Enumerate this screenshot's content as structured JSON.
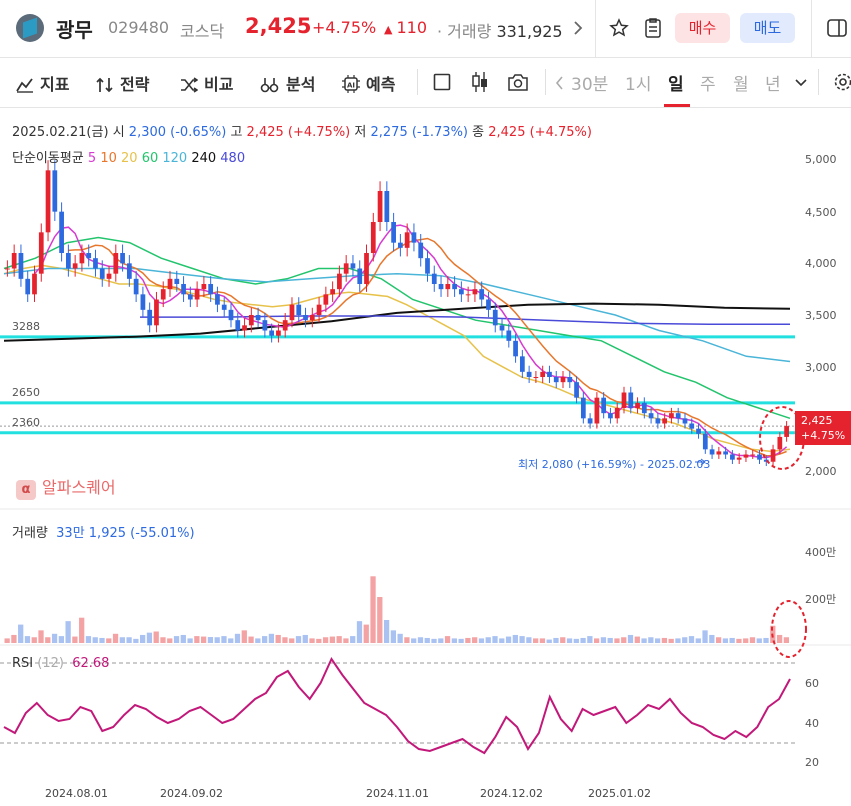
{
  "header": {
    "name": "광무",
    "code": "029480",
    "market": "코스닥",
    "price": "2,425",
    "change_pct": "+4.75%",
    "change_arrow": "▲",
    "change": "110",
    "volume_label": "· 거래량",
    "volume": "331,925",
    "buy_label": "매수",
    "sell_label": "매도"
  },
  "toolbar": {
    "indicators": "지표",
    "strategy": "전략",
    "compare": "비교",
    "analysis": "분석",
    "predict": "예측",
    "timeframes": [
      "30분",
      "1시",
      "일",
      "주",
      "월",
      "년"
    ],
    "active_timeframe": "일"
  },
  "info": {
    "date": "2025.02.21(금)",
    "open_label": "시",
    "open": "2,300",
    "open_pct": "(-0.65%)",
    "high_label": "고",
    "high": "2,425",
    "high_pct": "(+4.75%)",
    "low_label": "저",
    "low": "2,275",
    "low_pct": "(-1.73%)",
    "close_label": "종",
    "close": "2,425",
    "close_pct": "(+4.75%)"
  },
  "ma_legend": {
    "title": "단순이동평균",
    "periods": [
      "5",
      "10",
      "20",
      "60",
      "120",
      "240",
      "480"
    ],
    "colors": [
      "#d63bd1",
      "#e8762b",
      "#e7c24a",
      "#22c46c",
      "#4ab5d8",
      "#111111",
      "#4a4ad8"
    ]
  },
  "watermark": "알파스퀘어",
  "volume_legend": {
    "label": "거래량",
    "value": "33만 1,925",
    "pct": "(-55.01%)"
  },
  "rsi_legend": {
    "label": "RSI",
    "period": "(12)",
    "value": "62.68"
  },
  "price_tag": {
    "price": "2,425",
    "pct": "+4.75%"
  },
  "low_annotation": "최저 2,080 (+16.59%) - 2025.02.03",
  "horizontal_lines": [
    "3288",
    "2650",
    "2360"
  ],
  "price_axis": [
    "5,000",
    "4,500",
    "4,000",
    "3,500",
    "3,000",
    "2,500",
    "2,000"
  ],
  "volume_axis": [
    "400만",
    "200만"
  ],
  "rsi_axis": [
    "60",
    "40",
    "20"
  ],
  "date_axis": [
    "2024.08.01",
    "2024.09.02",
    "2024.11.01",
    "2024.12.02",
    "2025.01.02"
  ],
  "colors": {
    "up": "#e5232e",
    "down": "#2d6ae0",
    "hline": "#22e0e0"
  },
  "chart_data": {
    "type": "candlestick",
    "close_series": [
      3950,
      4100,
      3850,
      3700,
      3900,
      4300,
      4900,
      4500,
      4100,
      3950,
      4000,
      4100,
      4050,
      3950,
      3850,
      3900,
      4100,
      4000,
      3850,
      3700,
      3550,
      3400,
      3650,
      3750,
      3850,
      3800,
      3700,
      3650,
      3750,
      3800,
      3700,
      3600,
      3550,
      3450,
      3350,
      3400,
      3500,
      3450,
      3350,
      3300,
      3350,
      3450,
      3600,
      3500,
      3450,
      3500,
      3600,
      3700,
      3750,
      3900,
      4000,
      3950,
      3800,
      4100,
      4400,
      4700,
      4400,
      4200,
      4150,
      4300,
      4200,
      4050,
      3900,
      3800,
      3750,
      3800,
      3750,
      3700,
      3700,
      3750,
      3650,
      3550,
      3400,
      3350,
      3250,
      3100,
      2950,
      2900,
      2900,
      2950,
      2900,
      2850,
      2900,
      2850,
      2700,
      2500,
      2450,
      2700,
      2550,
      2500,
      2600,
      2750,
      2600,
      2650,
      2550,
      2500,
      2450,
      2500,
      2550,
      2500,
      2450,
      2400,
      2350,
      2200,
      2150,
      2180,
      2150,
      2100,
      2120,
      2150,
      2150,
      2100,
      2080,
      2200,
      2320,
      2425
    ],
    "ma": {
      "ma20": [
        3900,
        3950,
        3980,
        3950,
        3900,
        3850,
        3800,
        3800,
        3780,
        3750,
        3700,
        3650,
        3620,
        3600,
        3580,
        3600,
        3650,
        3700,
        3720,
        3700,
        3680,
        3600,
        3500,
        3400,
        3300,
        3100,
        3000,
        2900,
        2850,
        2780,
        2700,
        2650,
        2600,
        2550,
        2500,
        2450,
        2380,
        2300,
        2250,
        2200,
        2180,
        2200
      ],
      "ma60": [
        3950,
        4050,
        4200,
        4250,
        4200,
        4050,
        3950,
        3850,
        3800,
        3850,
        3950,
        3950,
        3850,
        3650,
        3550,
        3450,
        3400,
        3350,
        3300,
        3250,
        3100,
        2950,
        2850,
        2700,
        2600,
        2500
      ],
      "ma120": [
        3900,
        3950,
        3950,
        3950,
        3900,
        3850,
        3820,
        3850,
        3880,
        3900,
        3880,
        3800,
        3700,
        3600,
        3500,
        3350,
        3250,
        3100,
        3050
      ],
      "ma240": [
        3250,
        3270,
        3290,
        3320,
        3380,
        3440,
        3520,
        3560,
        3600,
        3610,
        3600,
        3570,
        3560
      ],
      "ma480": [
        3480,
        3480,
        3490,
        3490,
        3480,
        3450,
        3420,
        3410,
        3410
      ]
    },
    "volume_series": [
      20,
      35,
      80,
      30,
      25,
      55,
      25,
      40,
      30,
      95,
      28,
      110,
      30,
      25,
      22,
      20,
      40,
      25,
      25,
      18,
      35,
      45,
      50,
      25,
      20,
      30,
      35,
      20,
      30,
      28,
      26,
      25,
      30,
      20,
      40,
      55,
      28,
      20,
      30,
      40,
      35,
      25,
      20,
      30,
      35,
      20,
      18,
      25,
      28,
      30,
      20,
      30,
      95,
      80,
      290,
      200,
      100,
      55,
      40,
      25,
      20,
      25,
      22,
      18,
      20,
      30,
      20,
      18,
      22,
      25,
      20,
      25,
      30,
      20,
      28,
      35,
      30,
      25,
      20,
      20,
      15,
      22,
      25,
      20,
      18,
      22,
      30,
      20,
      25,
      22,
      20,
      25,
      35,
      28,
      20,
      25,
      20,
      22,
      18,
      20,
      25,
      30,
      20,
      55,
      35,
      25,
      20,
      22,
      18,
      20,
      25,
      20,
      22,
      75,
      35,
      25
    ],
    "rsi_series": [
      38,
      35,
      45,
      50,
      44,
      41,
      42,
      48,
      46,
      36,
      38,
      44,
      49,
      47,
      43,
      40,
      42,
      46,
      48,
      44,
      40,
      42,
      47,
      52,
      55,
      63,
      66,
      58,
      52,
      60,
      72,
      64,
      57,
      50,
      47,
      44,
      38,
      31,
      27,
      26,
      28,
      30,
      32,
      28,
      25,
      33,
      43,
      38,
      27,
      35,
      53,
      42,
      36,
      47,
      44,
      46,
      48,
      40,
      44,
      49,
      47,
      52,
      45,
      40,
      38,
      34,
      32,
      36,
      33,
      38,
      48,
      52,
      62
    ]
  }
}
